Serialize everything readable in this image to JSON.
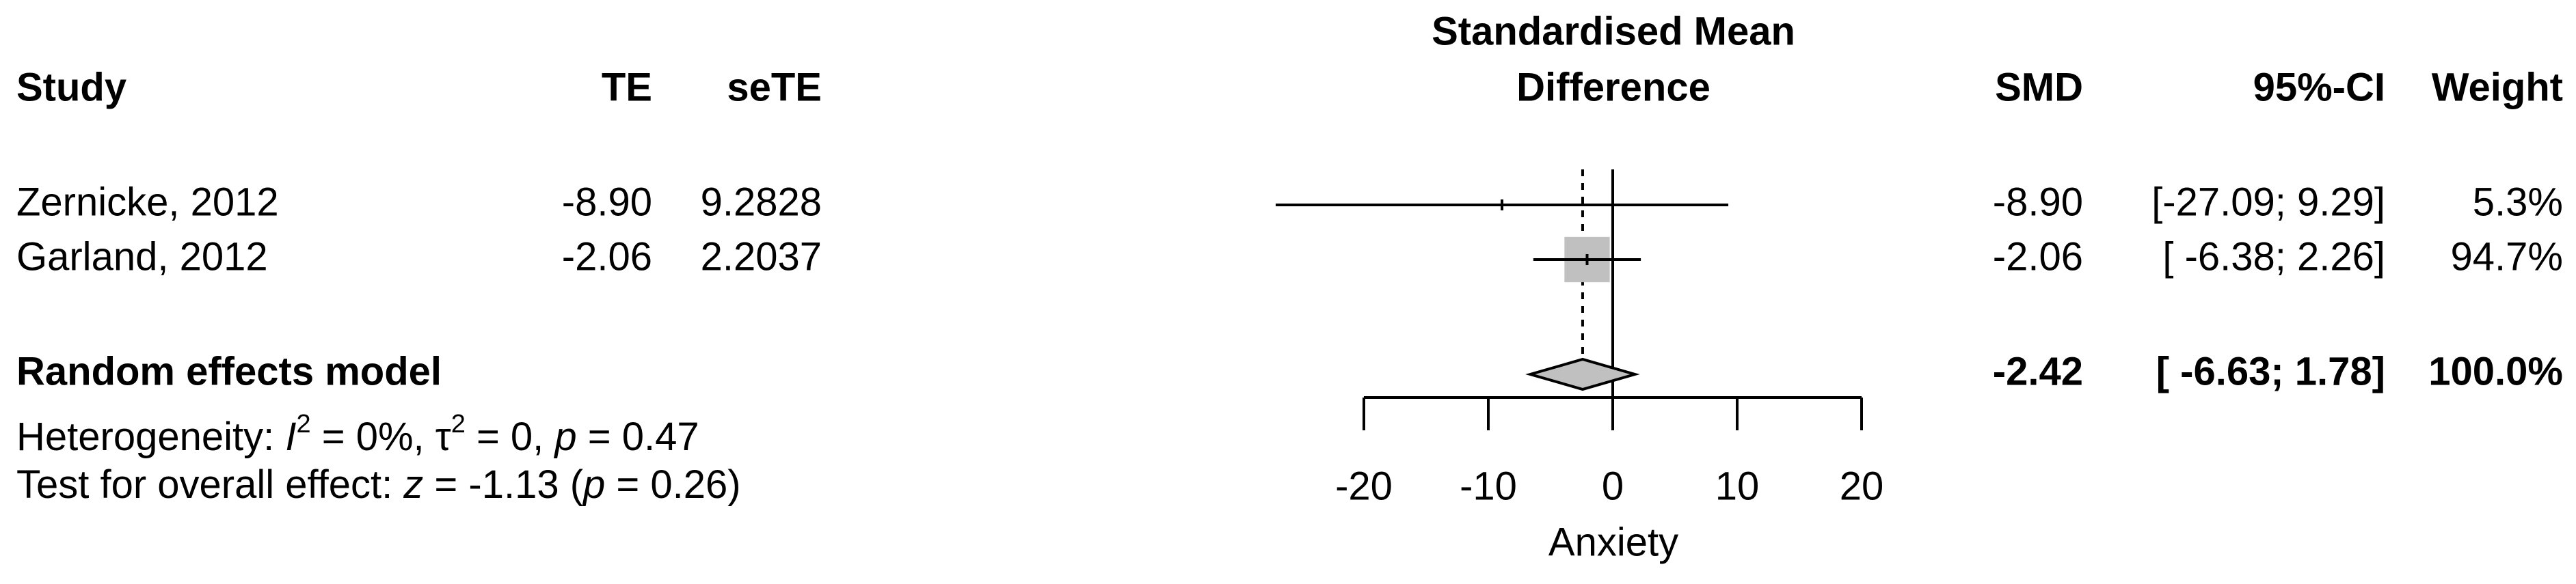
{
  "chart_data": {
    "type": "forest",
    "columns": {
      "study": "Study",
      "te": "TE",
      "sete": "seTE",
      "title_line1": "Standardised Mean",
      "title_line2": "Difference",
      "smd": "SMD",
      "ci": "95%-CI",
      "weight": "Weight"
    },
    "studies": [
      {
        "name": "Zernicke, 2012",
        "te": -8.9,
        "te_label": "-8.90",
        "sete": 9.2828,
        "ci_lower": -27.09,
        "ci_upper": 9.29,
        "ci_label": "[-27.09; 9.29]",
        "weight": 5.3,
        "weight_label": "5.3%"
      },
      {
        "name": "Garland, 2012",
        "te": -2.06,
        "te_label": "-2.06",
        "sete": 2.2037,
        "ci_lower": -6.38,
        "ci_upper": 2.26,
        "ci_label": "[ -6.38; 2.26]",
        "weight": 94.7,
        "weight_label": "94.7%"
      }
    ],
    "pooled": {
      "name": "Random effects model",
      "te": -2.42,
      "te_label": "-2.42",
      "ci_lower": -6.63,
      "ci_upper": 1.78,
      "ci_label": "[ -6.63; 1.78]",
      "weight": 100,
      "weight_label": "100.0%"
    },
    "heterogeneity_parts": [
      "Heterogeneity: ",
      "I",
      "2",
      " = 0%, ",
      "τ",
      "2",
      " = 0, ",
      "p",
      " = 0.47"
    ],
    "overall_test_parts": [
      "Test for overall effect: ",
      "z",
      " = -1.13 (",
      "p",
      " = 0.26)"
    ],
    "xlabel": "Anxiety",
    "xlim": [
      -20,
      20
    ],
    "xticks": [
      -20,
      -10,
      0,
      10,
      20
    ],
    "square_color": "#c0c0c0",
    "diamond_color": "#c0c0c0"
  }
}
